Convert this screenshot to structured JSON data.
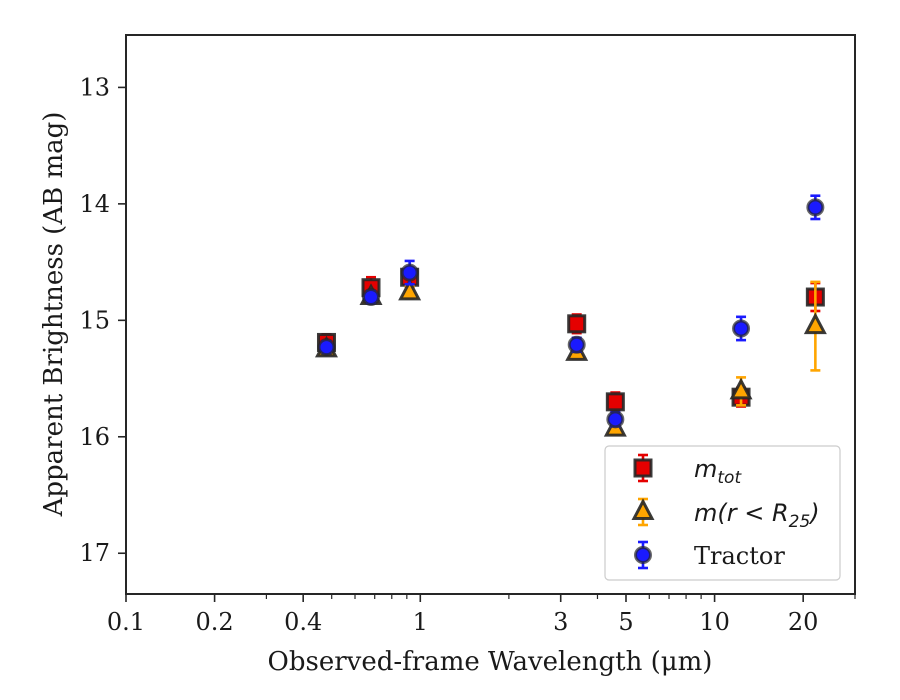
{
  "chart_data": {
    "type": "scatter",
    "xlabel": "Observed-frame Wavelength (μm)",
    "ylabel": "Apparent Brightness (AB mag)",
    "x_scale": "log",
    "xlim": [
      0.1,
      30
    ],
    "ylim": [
      17.35,
      12.55
    ],
    "y_inverted": true,
    "x_ticks": [
      {
        "value": 0.1,
        "label": "0.1"
      },
      {
        "value": 0.2,
        "label": "0.2"
      },
      {
        "value": 0.4,
        "label": "0.4"
      },
      {
        "value": 1,
        "label": "1"
      },
      {
        "value": 3,
        "label": "3"
      },
      {
        "value": 5,
        "label": "5"
      },
      {
        "value": 10,
        "label": "10"
      },
      {
        "value": 20,
        "label": "20"
      }
    ],
    "x_minor_ticks": [
      0.3,
      0.5,
      0.6,
      0.7,
      0.8,
      0.9,
      2,
      4,
      6,
      7,
      8,
      9,
      30
    ],
    "y_ticks": [
      {
        "value": 13,
        "label": "13"
      },
      {
        "value": 14,
        "label": "14"
      },
      {
        "value": 15,
        "label": "15"
      },
      {
        "value": 16,
        "label": "16"
      },
      {
        "value": 17,
        "label": "17"
      }
    ],
    "grid": false,
    "legend_position": "lower-right",
    "series": [
      {
        "name": "m_tot",
        "legend_main": "m",
        "legend_sub": "tot",
        "marker": "square",
        "color": "#e50000",
        "errcolor": "#e50000",
        "points": [
          {
            "x": 0.48,
            "y": 15.19,
            "err": 0.07
          },
          {
            "x": 0.68,
            "y": 14.72,
            "err": 0.09
          },
          {
            "x": 0.92,
            "y": 14.63,
            "err": 0.08
          },
          {
            "x": 3.4,
            "y": 15.03,
            "err": 0.08
          },
          {
            "x": 4.6,
            "y": 15.7,
            "err": 0.08
          },
          {
            "x": 12.3,
            "y": 15.66,
            "err": 0.08
          },
          {
            "x": 22.0,
            "y": 14.8,
            "err": 0.12
          }
        ]
      },
      {
        "name": "m(r < R_25)",
        "legend_main": "m(r < R",
        "legend_sub": "25",
        "legend_tail": ")",
        "marker": "triangle",
        "color": "#ffa500",
        "errcolor": "#ffa500",
        "points": [
          {
            "x": 0.48,
            "y": 15.25,
            "err": 0.04
          },
          {
            "x": 0.68,
            "y": 14.8,
            "err": 0.04
          },
          {
            "x": 0.92,
            "y": 14.76,
            "err": 0.05
          },
          {
            "x": 3.4,
            "y": 15.28,
            "err": 0.05
          },
          {
            "x": 4.6,
            "y": 15.93,
            "err": 0.05
          },
          {
            "x": 12.3,
            "y": 15.61,
            "err": 0.12
          },
          {
            "x": 22.0,
            "y": 15.05,
            "err": 0.38
          }
        ]
      },
      {
        "name": "Tractor",
        "legend_main": "Tractor",
        "marker": "circle",
        "color": "#1a1aff",
        "errcolor": "#1a1aff",
        "points": [
          {
            "x": 0.48,
            "y": 15.23,
            "err": 0.05
          },
          {
            "x": 0.68,
            "y": 14.8,
            "err": 0.05
          },
          {
            "x": 0.92,
            "y": 14.59,
            "err": 0.1
          },
          {
            "x": 3.4,
            "y": 15.21,
            "err": 0.06
          },
          {
            "x": 4.6,
            "y": 15.85,
            "err": 0.06
          },
          {
            "x": 12.3,
            "y": 15.07,
            "err": 0.1
          },
          {
            "x": 22.0,
            "y": 14.03,
            "err": 0.1
          }
        ]
      }
    ]
  }
}
